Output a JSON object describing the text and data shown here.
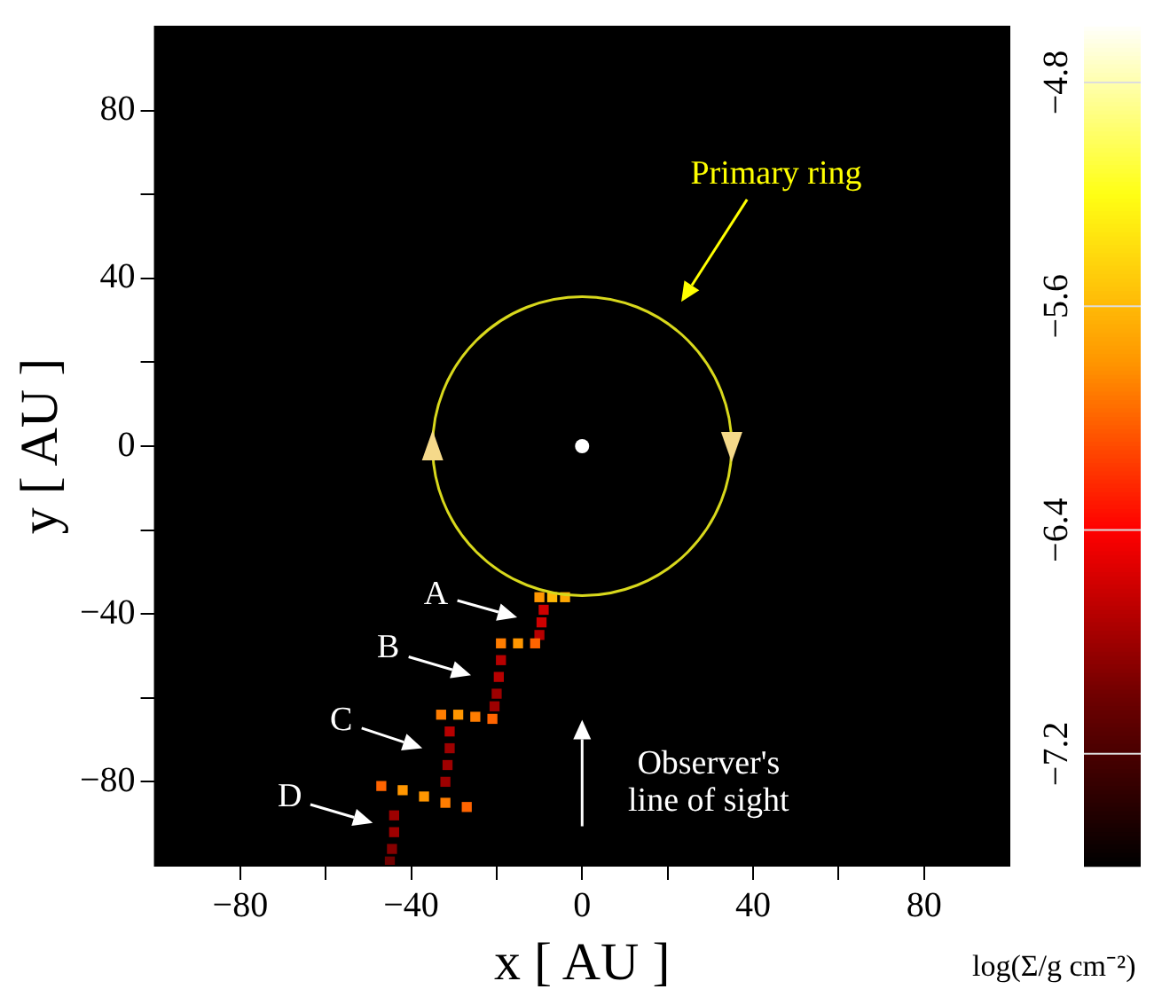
{
  "chart_data": {
    "type": "scatter",
    "xlabel": "x [ AU ]",
    "ylabel": "y [ AU ]",
    "clabel": "log(Σ/g cm⁻²)",
    "xlim": [
      -100,
      100
    ],
    "ylim": [
      -100,
      100
    ],
    "xticks": [
      {
        "value": -80,
        "label": "−80"
      },
      {
        "value": -60,
        "label": null
      },
      {
        "value": -40,
        "label": "−40"
      },
      {
        "value": -20,
        "label": null
      },
      0,
      {
        "value": 20,
        "label": null
      },
      40,
      {
        "value": 60,
        "label": null
      },
      80
    ],
    "yticks": [
      {
        "value": -80,
        "label": "−80"
      },
      {
        "value": -60,
        "label": null
      },
      {
        "value": -40,
        "label": "−40"
      },
      {
        "value": -20,
        "label": null
      },
      0,
      {
        "value": 20,
        "label": null
      },
      40,
      {
        "value": 60,
        "label": null
      },
      80
    ],
    "clim": [
      -7.6,
      -4.6
    ],
    "cticks": [
      {
        "value": -4.8,
        "label": "−4.8"
      },
      {
        "value": -5.6,
        "label": "−5.6"
      },
      {
        "value": -6.4,
        "label": "−6.4"
      },
      {
        "value": -7.2,
        "label": "−7.2"
      }
    ],
    "grid": false,
    "legend": false,
    "annotations": [
      "Primary ring",
      "A",
      "B",
      "C",
      "D",
      "Observer's line of sight"
    ],
    "series": [
      {
        "type": "scatter",
        "marker": "square",
        "x": [
          -10,
          -7,
          -4,
          -9,
          -9.5,
          -10,
          -19,
          -15,
          -11,
          -19,
          -19.5,
          -20,
          -20.5,
          -33,
          -29,
          -25,
          -21,
          -31,
          -31,
          -31.5,
          -32,
          -47,
          -42,
          -37,
          -32,
          -27,
          -44,
          -44,
          -44.5,
          -45
        ],
        "values": [
          -36,
          -36,
          -36,
          -39,
          -42,
          -45,
          -47,
          -47,
          -47,
          -51,
          -55,
          -59,
          -62,
          -64,
          -64,
          -64.5,
          -65,
          -68,
          -72,
          -76,
          -80,
          -81,
          -82,
          -83.5,
          -85,
          -86,
          -88,
          -92,
          -96,
          -99
        ],
        "colors": [
          "#ff9600",
          "#ffb907",
          "#ffa803",
          "#cf0000",
          "#cf0000",
          "#b70000",
          "#ff7d00",
          "#ff9600",
          "#ff6400",
          "#b70000",
          "#b70000",
          "#9e0000",
          "#9e0000",
          "#ff7d00",
          "#ff9600",
          "#ff7d00",
          "#ff6400",
          "#b70000",
          "#9e0000",
          "#9e0000",
          "#9e0000",
          "#ff6400",
          "#ff9600",
          "#ff9600",
          "#ff7d00",
          "#ff6400",
          "#9e0000",
          "#9e0000",
          "#860000",
          "#6e0000"
        ]
      },
      {
        "type": "scatter",
        "marker": "circle",
        "color": "#ffffff",
        "x": [
          0
        ],
        "values": [
          0
        ]
      }
    ]
  }
}
